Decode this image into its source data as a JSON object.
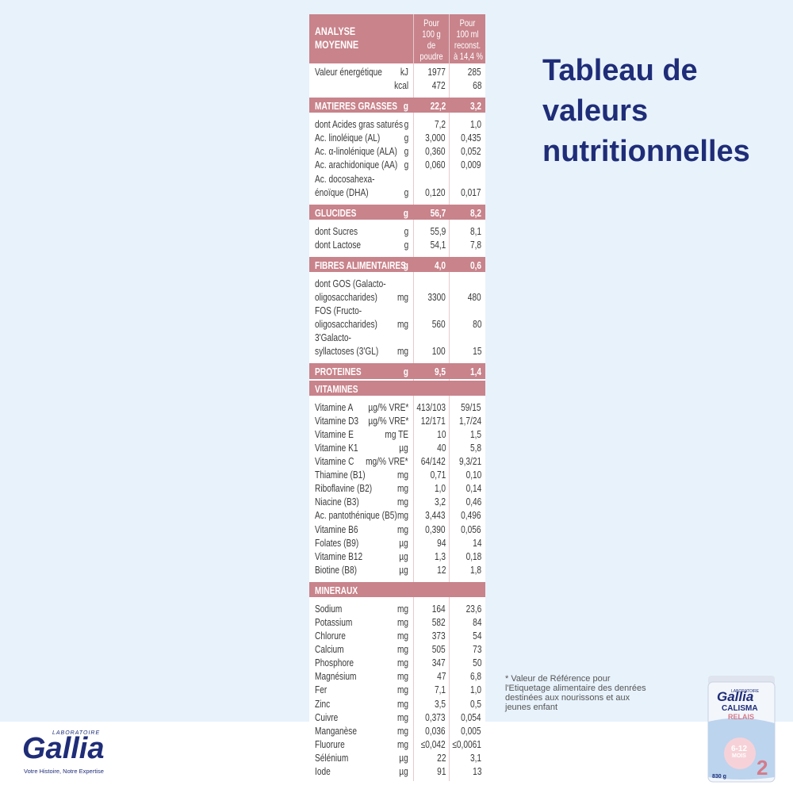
{
  "side": {
    "title": [
      "Tableau de",
      "valeurs",
      "nutritionnelles"
    ],
    "footnote": [
      "* Valeur de Référence pour",
      "l'Etiquetage alimentaire des denrées",
      "destinées aux nourissons et aux",
      "jeunes enfant"
    ]
  },
  "logo": {
    "small": "LABORATOIRE",
    "brand": "Gallia",
    "tagline": "Votre Histoire, Notre Expertise"
  },
  "product": {
    "maker": "LABORATOIRE",
    "brand": "Gallia",
    "line": "CALISMA",
    "variant": "RELAIS",
    "age": "6-12",
    "age_unit": "MOIS",
    "weight": "830 g",
    "stage": "2"
  },
  "table": {
    "header": {
      "label": [
        "ANALYSE",
        "MOYENNE"
      ],
      "per_100g": [
        "Pour",
        "100 g",
        "de",
        "poudre"
      ],
      "per_100ml": [
        "Pour",
        "100 ml",
        "reconst.",
        "à 14,4 %"
      ]
    },
    "rows": [
      {
        "label": [
          "Valeur énergétique"
        ],
        "unit": "kJ",
        "per_100g": "1977",
        "per_100ml": "285"
      },
      {
        "unit": "kcal",
        "per_100g": "472",
        "per_100ml": "68"
      }
    ],
    "sections": [
      {
        "title": "MATIERES GRASSES",
        "unit": "g",
        "per_100g": "22,2",
        "per_100ml": "3,2",
        "rows": [
          {
            "label": [
              "dont Acides gras saturés"
            ],
            "unit": "g",
            "per_100g": "7,2",
            "per_100ml": "1,0"
          },
          {
            "label": [
              "Ac. linoléique (AL)"
            ],
            "unit": "g",
            "per_100g": "3,000",
            "per_100ml": "0,435"
          },
          {
            "label": [
              "Ac. α-linolénique (ALA)"
            ],
            "unit": "g",
            "per_100g": "0,360",
            "per_100ml": "0,052"
          },
          {
            "label": [
              "Ac. arachidonique (AA)"
            ],
            "unit": "g",
            "per_100g": "0,060",
            "per_100ml": "0,009"
          },
          {
            "label": [
              "Ac. docosahexa-",
              "énoïque (DHA)"
            ],
            "unit": "g",
            "per_100g": "0,120",
            "per_100ml": "0,017"
          }
        ]
      },
      {
        "title": "GLUCIDES",
        "unit": "g",
        "per_100g": "56,7",
        "per_100ml": "8,2",
        "rows": [
          {
            "label": [
              "dont Sucres"
            ],
            "unit": "g",
            "per_100g": "55,9",
            "per_100ml": "8,1"
          },
          {
            "label": [
              "dont Lactose"
            ],
            "unit": "g",
            "per_100g": "54,1",
            "per_100ml": "7,8"
          }
        ]
      },
      {
        "title": "FIBRES ALIMENTAIRES",
        "unit": "g",
        "per_100g": "4,0",
        "per_100ml": "0,6",
        "rows": [
          {
            "label": [
              "dont GOS (Galacto-",
              "oligosaccharides)"
            ],
            "unit": "mg",
            "per_100g": "3300",
            "per_100ml": "480"
          },
          {
            "label": [
              "FOS (Fructo-",
              "oligosaccharides)"
            ],
            "unit": "mg",
            "per_100g": "560",
            "per_100ml": "80"
          },
          {
            "label": [
              "3'Galacto-",
              "syllactoses (3'GL)"
            ],
            "unit": "mg",
            "per_100g": "100",
            "per_100ml": "15"
          }
        ]
      },
      {
        "title": "PROTEINES",
        "unit": "g",
        "per_100g": "9,5",
        "per_100ml": "1,4",
        "rows": []
      },
      {
        "title": "VITAMINES",
        "rows": [
          {
            "label": [
              "Vitamine A"
            ],
            "unit": "µg/% VRE*",
            "per_100g": "413/103",
            "per_100ml": "59/15"
          },
          {
            "label": [
              "Vitamine D3"
            ],
            "unit": "µg/% VRE*",
            "per_100g": "12/171",
            "per_100ml": "1,7/24"
          },
          {
            "label": [
              "Vitamine E"
            ],
            "unit": "mg TE",
            "per_100g": "10",
            "per_100ml": "1,5"
          },
          {
            "label": [
              "Vitamine K1"
            ],
            "unit": "µg",
            "per_100g": "40",
            "per_100ml": "5,8"
          },
          {
            "label": [
              "Vitamine C"
            ],
            "unit": "mg/% VRE*",
            "per_100g": "64/142",
            "per_100ml": "9,3/21"
          },
          {
            "label": [
              "Thiamine (B1)"
            ],
            "unit": "mg",
            "per_100g": "0,71",
            "per_100ml": "0,10"
          },
          {
            "label": [
              "Riboflavine (B2)"
            ],
            "unit": "mg",
            "per_100g": "1,0",
            "per_100ml": "0,14"
          },
          {
            "label": [
              "Niacine (B3)"
            ],
            "unit": "mg",
            "per_100g": "3,2",
            "per_100ml": "0,46"
          },
          {
            "label": [
              "Ac. pantothénique (B5)"
            ],
            "unit": "mg",
            "per_100g": "3,443",
            "per_100ml": "0,496"
          },
          {
            "label": [
              "Vitamine B6"
            ],
            "unit": "mg",
            "per_100g": "0,390",
            "per_100ml": "0,056"
          },
          {
            "label": [
              "Folates (B9)"
            ],
            "unit": "µg",
            "per_100g": "94",
            "per_100ml": "14"
          },
          {
            "label": [
              "Vitamine B12"
            ],
            "unit": "µg",
            "per_100g": "1,3",
            "per_100ml": "0,18"
          },
          {
            "label": [
              "Biotine (B8)"
            ],
            "unit": "µg",
            "per_100g": "12",
            "per_100ml": "1,8"
          }
        ]
      },
      {
        "title": "MINERAUX",
        "rows": [
          {
            "label": [
              "Sodium"
            ],
            "unit": "mg",
            "per_100g": "164",
            "per_100ml": "23,6"
          },
          {
            "label": [
              "Potassium"
            ],
            "unit": "mg",
            "per_100g": "582",
            "per_100ml": "84"
          },
          {
            "label": [
              "Chlorure"
            ],
            "unit": "mg",
            "per_100g": "373",
            "per_100ml": "54"
          },
          {
            "label": [
              "Calcium"
            ],
            "unit": "mg",
            "per_100g": "505",
            "per_100ml": "73"
          },
          {
            "label": [
              "Phosphore"
            ],
            "unit": "mg",
            "per_100g": "347",
            "per_100ml": "50"
          },
          {
            "label": [
              "Magnésium"
            ],
            "unit": "mg",
            "per_100g": "47",
            "per_100ml": "6,8"
          },
          {
            "label": [
              "Fer"
            ],
            "unit": "mg",
            "per_100g": "7,1",
            "per_100ml": "1,0"
          },
          {
            "label": [
              "Zinc"
            ],
            "unit": "mg",
            "per_100g": "3,5",
            "per_100ml": "0,5"
          },
          {
            "label": [
              "Cuivre"
            ],
            "unit": "mg",
            "per_100g": "0,373",
            "per_100ml": "0,054"
          },
          {
            "label": [
              "Manganèse"
            ],
            "unit": "mg",
            "per_100g": "0,036",
            "per_100ml": "0,005"
          },
          {
            "label": [
              "Fluorure"
            ],
            "unit": "mg",
            "per_100g": "≤0,042",
            "per_100ml": "≤0,0061"
          },
          {
            "label": [
              "Sélénium"
            ],
            "unit": "µg",
            "per_100g": "22",
            "per_100ml": "3,1"
          },
          {
            "label": [
              "Iode"
            ],
            "unit": "µg",
            "per_100g": "91",
            "per_100ml": "13"
          }
        ]
      }
    ]
  }
}
